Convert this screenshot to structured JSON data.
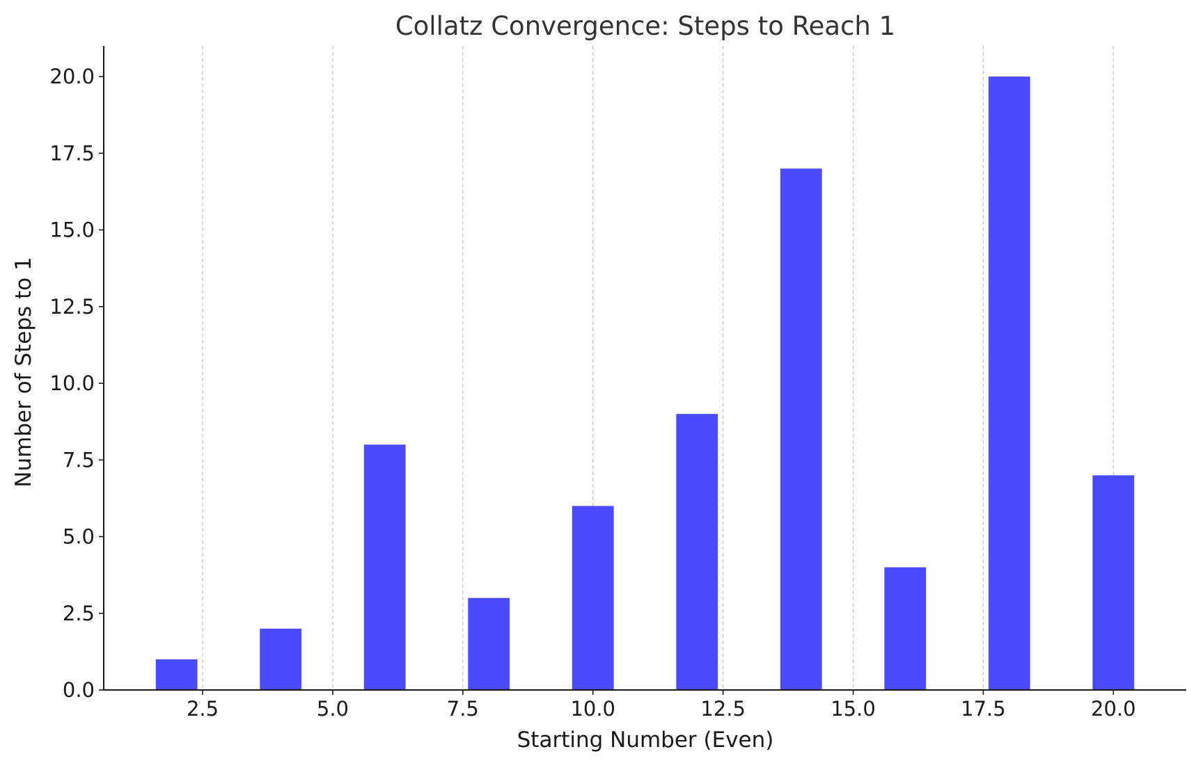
{
  "chart_data": {
    "type": "bar",
    "title": "Collatz Convergence: Steps to Reach 1",
    "xlabel": "Starting Number (Even)",
    "ylabel": "Number of Steps to 1",
    "x": [
      2,
      4,
      6,
      8,
      10,
      12,
      14,
      16,
      18,
      20
    ],
    "values": [
      1,
      2,
      8,
      3,
      6,
      9,
      17,
      4,
      20,
      7
    ],
    "bar_width": 0.8,
    "bar_color": "#4a4aff",
    "xlim": [
      0.6,
      21.4
    ],
    "ylim": [
      0,
      21
    ],
    "xticks": [
      2.5,
      5.0,
      7.5,
      10.0,
      12.5,
      15.0,
      17.5,
      20.0
    ],
    "xtick_labels": [
      "2.5",
      "5.0",
      "7.5",
      "10.0",
      "12.5",
      "15.0",
      "17.5",
      "20.0"
    ],
    "yticks": [
      0,
      2.5,
      5.0,
      7.5,
      10.0,
      12.5,
      15.0,
      17.5,
      20.0
    ],
    "ytick_labels": [
      "0.0",
      "2.5",
      "5.0",
      "7.5",
      "10.0",
      "12.5",
      "15.0",
      "17.5",
      "20.0"
    ],
    "grid": "x-axis dashed"
  }
}
